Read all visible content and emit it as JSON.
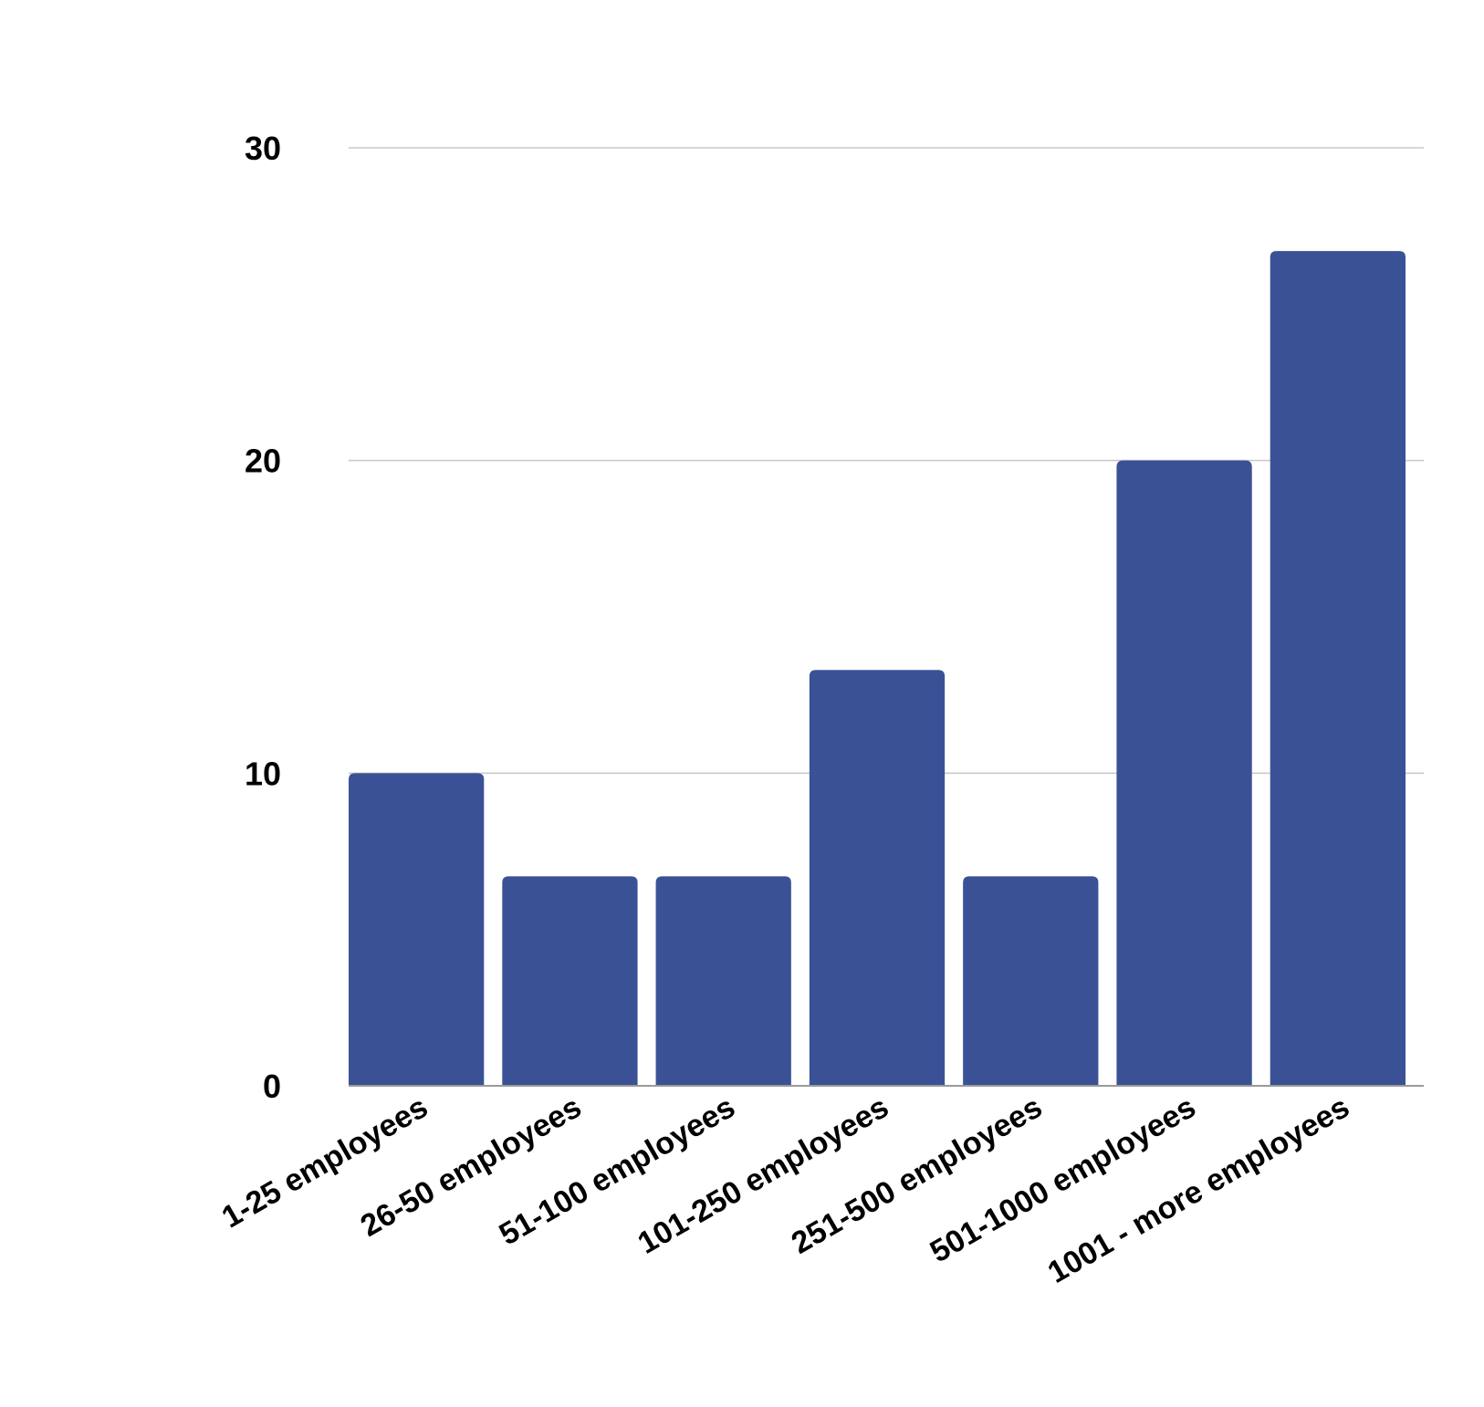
{
  "chart_data": {
    "type": "bar",
    "categories": [
      "1-25 employees",
      "26-50 employees",
      "51-100 employees",
      "101-250 employees",
      "251-500 employees",
      "501-1000 employees",
      "1001 - more employees"
    ],
    "values": [
      10,
      6.7,
      6.7,
      13.3,
      6.7,
      20,
      26.7
    ],
    "y_ticks": [
      "0",
      "10",
      "20",
      "30"
    ],
    "ylim": [
      0,
      30
    ],
    "grid": true,
    "bar_color": "#3a5295",
    "grid_color": "#c8c8c8",
    "axis_color": "#9a9a9a",
    "title": "",
    "xlabel": "",
    "ylabel": ""
  }
}
